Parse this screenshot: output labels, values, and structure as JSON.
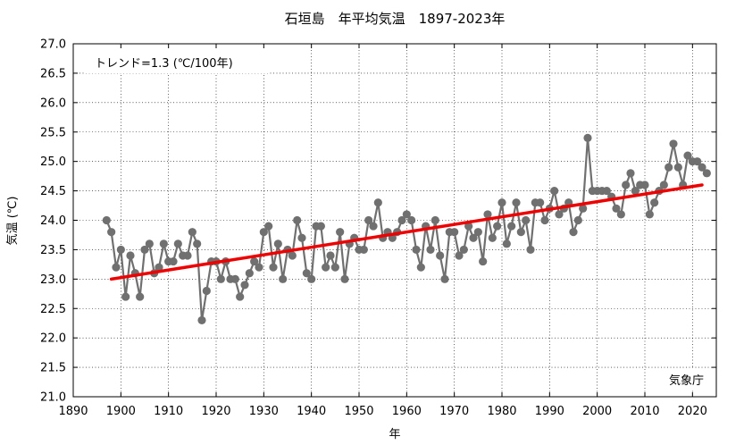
{
  "chart_data": {
    "type": "line",
    "title": "石垣島　年平均気温　1897-2023年",
    "xlabel": "年",
    "ylabel": "気温 (℃)",
    "xlim": [
      1890,
      2025
    ],
    "ylim": [
      21.0,
      27.0
    ],
    "xticks": [
      1890,
      1900,
      1910,
      1920,
      1930,
      1940,
      1950,
      1960,
      1970,
      1980,
      1990,
      2000,
      2010,
      2020
    ],
    "yticks": [
      "21.0",
      "21.5",
      "22.0",
      "22.5",
      "23.0",
      "23.5",
      "24.0",
      "24.5",
      "25.0",
      "25.5",
      "26.0",
      "26.5",
      "27.0"
    ],
    "grid": true,
    "trend_label": "トレンド=1.3 (℃/100年)",
    "source_label": "気象庁",
    "series": [
      {
        "color": "#707070",
        "marker": "circle",
        "x": [
          1897,
          1898,
          1899,
          1900,
          1901,
          1902,
          1903,
          1904,
          1905,
          1906,
          1907,
          1908,
          1909,
          1910,
          1911,
          1912,
          1913,
          1914,
          1915,
          1916,
          1917,
          1918,
          1919,
          1920,
          1921,
          1922,
          1923,
          1924,
          1925,
          1926,
          1927,
          1928,
          1929,
          1930,
          1931,
          1932,
          1933,
          1934,
          1935,
          1936,
          1937,
          1938,
          1939,
          1940,
          1941,
          1942,
          1943,
          1944,
          1945,
          1946,
          1947,
          1948,
          1949,
          1950,
          1951,
          1952,
          1953,
          1954,
          1955,
          1956,
          1957,
          1958,
          1959,
          1960,
          1961,
          1962,
          1963,
          1964,
          1965,
          1966,
          1967,
          1968,
          1969,
          1970,
          1971,
          1972,
          1973,
          1974,
          1975,
          1976,
          1977,
          1978,
          1979,
          1980,
          1981,
          1982,
          1983,
          1984,
          1985,
          1986,
          1987,
          1988,
          1989,
          1990,
          1991,
          1992,
          1993,
          1994,
          1995,
          1996,
          1997,
          1998,
          1999,
          2000,
          2001,
          2002,
          2003,
          2004,
          2005,
          2006,
          2007,
          2008,
          2009,
          2010,
          2011,
          2012,
          2013,
          2014,
          2015,
          2016,
          2017,
          2018,
          2019,
          2020,
          2021,
          2022,
          2023
        ],
        "y": [
          24.0,
          23.8,
          23.2,
          23.5,
          22.7,
          23.4,
          23.1,
          22.7,
          23.5,
          23.6,
          23.1,
          23.2,
          23.6,
          23.3,
          23.3,
          23.6,
          23.4,
          23.4,
          23.8,
          23.6,
          22.3,
          22.8,
          23.3,
          23.3,
          23.0,
          23.3,
          23.0,
          23.0,
          22.7,
          22.9,
          23.1,
          23.3,
          23.2,
          23.8,
          23.9,
          23.2,
          23.6,
          23.0,
          23.5,
          23.4,
          24.0,
          23.7,
          23.1,
          23.0,
          23.9,
          23.9,
          23.2,
          23.4,
          23.2,
          23.8,
          23.0,
          23.6,
          23.7,
          23.5,
          23.5,
          24.0,
          23.9,
          24.3,
          23.7,
          23.8,
          23.7,
          23.8,
          24.0,
          24.1,
          24.0,
          23.5,
          23.2,
          23.9,
          23.5,
          24.0,
          23.4,
          23.0,
          23.8,
          23.8,
          23.4,
          23.5,
          23.9,
          23.7,
          23.8,
          23.3,
          24.1,
          23.7,
          23.9,
          24.3,
          23.6,
          23.9,
          24.3,
          23.8,
          24.0,
          23.5,
          24.3,
          24.3,
          24.0,
          24.2,
          24.5,
          24.1,
          24.2,
          24.3,
          23.8,
          24.0,
          24.2,
          25.4,
          24.5,
          24.5,
          24.5,
          24.5,
          24.4,
          24.2,
          24.1,
          24.6,
          24.8,
          24.5,
          24.6,
          24.6,
          24.1,
          24.3,
          24.5,
          24.6,
          24.9,
          25.3,
          24.9,
          24.6,
          25.1,
          25.0,
          25.0,
          24.9,
          24.8
        ]
      },
      {
        "type": "trend",
        "color": "#ee0000",
        "x": [
          1898,
          2022
        ],
        "y": [
          23.0,
          24.6
        ]
      }
    ]
  }
}
